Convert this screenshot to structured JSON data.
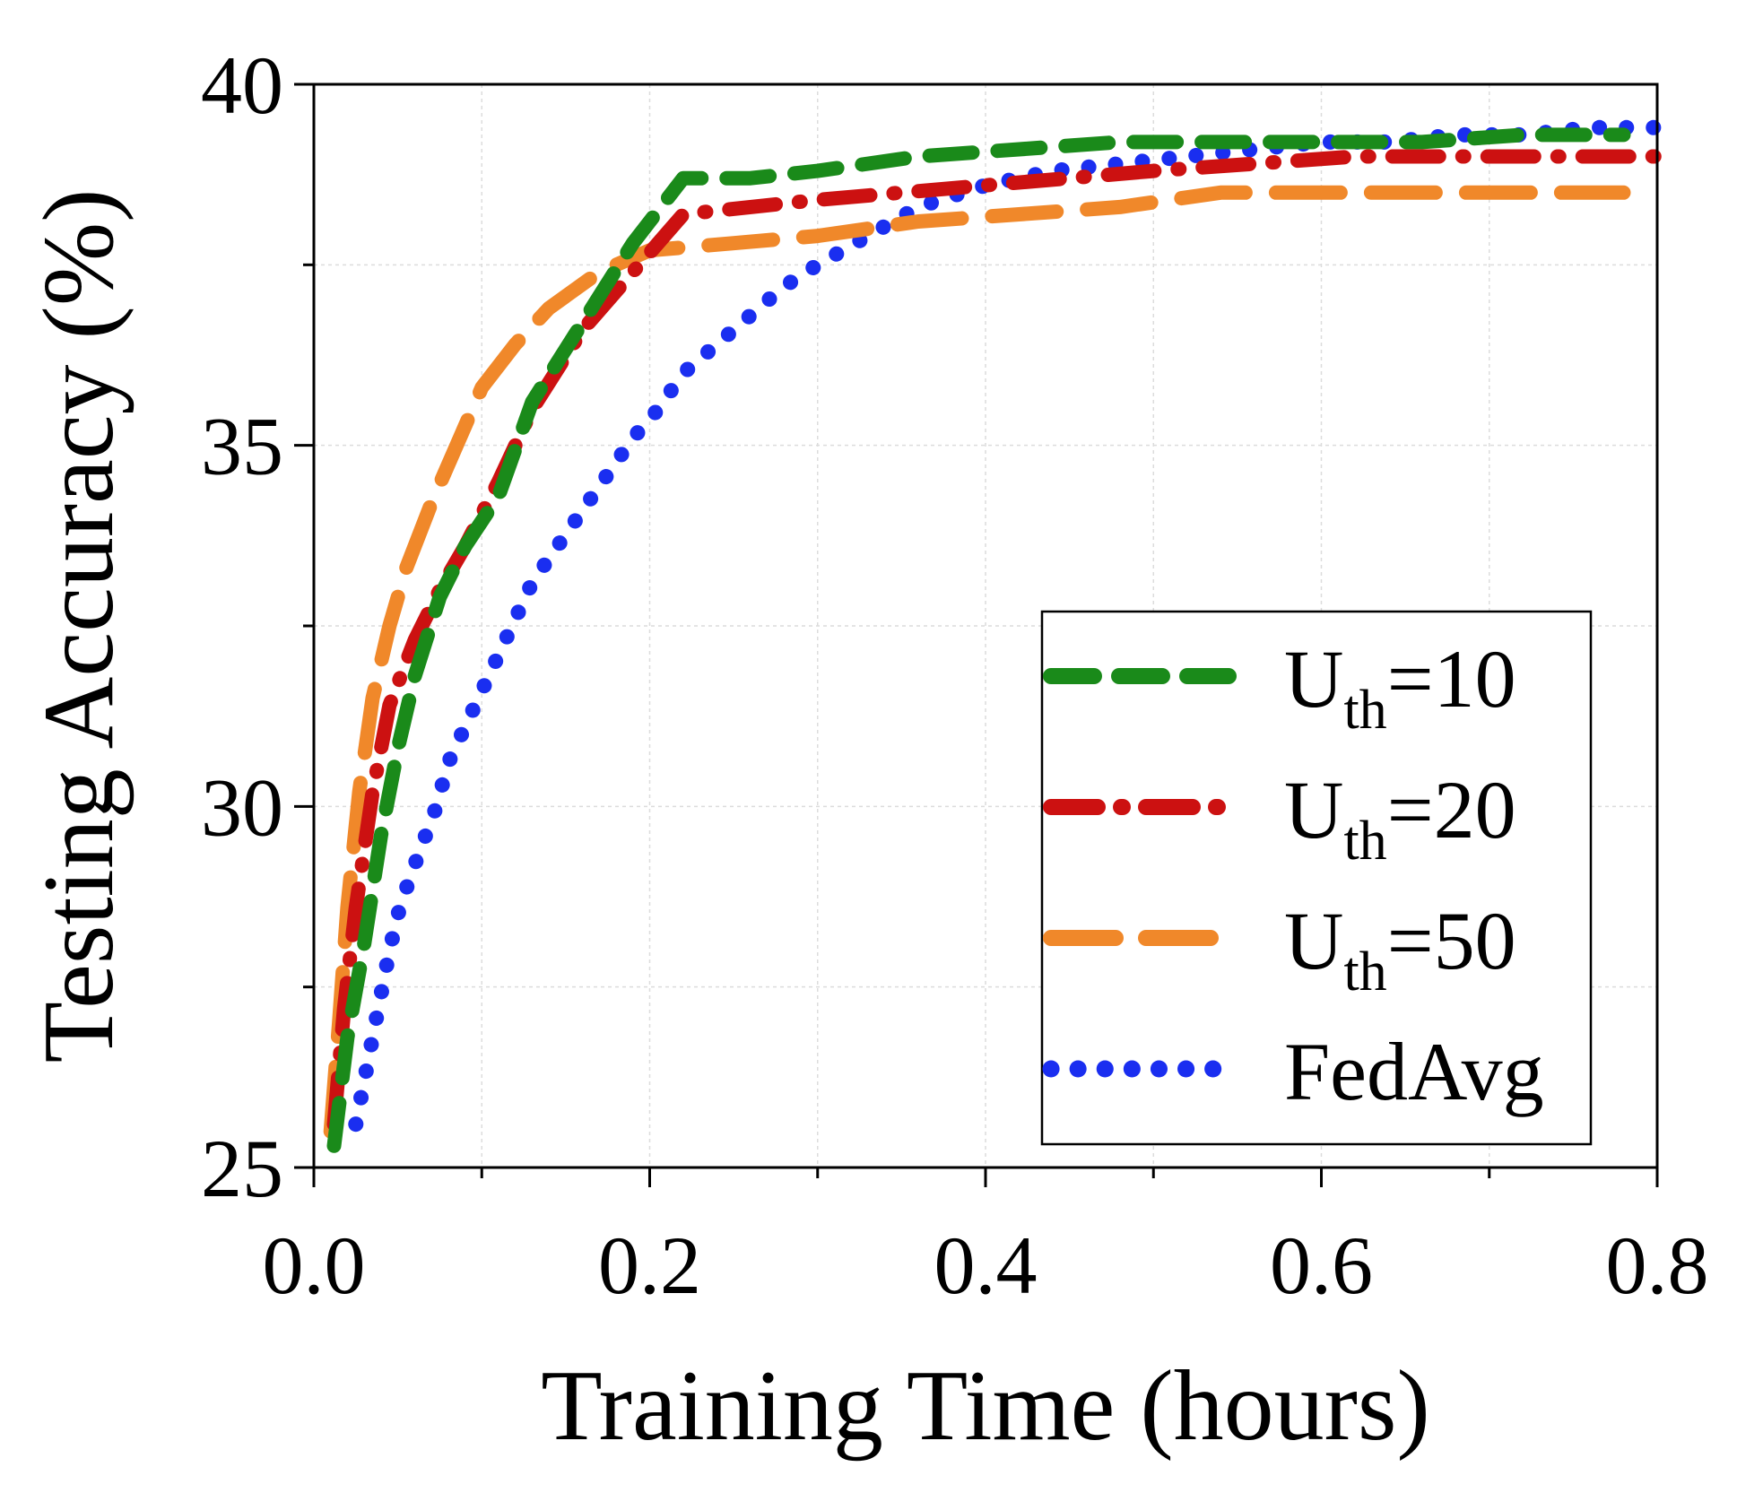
{
  "chart_data": {
    "type": "line",
    "title": "",
    "xlabel": "Training Time (hours)",
    "ylabel": "Testing Accuracy (%)",
    "xlim": [
      0.0,
      0.8
    ],
    "ylim": [
      25,
      40
    ],
    "xticks": [
      0.0,
      0.2,
      0.4,
      0.6,
      0.8
    ],
    "xtick_labels": [
      "0.0",
      "0.2",
      "0.4",
      "0.6",
      "0.8"
    ],
    "yticks": [
      25,
      30,
      35,
      40
    ],
    "ytick_labels": [
      "25",
      "30",
      "35",
      "40"
    ],
    "grid": true,
    "legend_position": "bottom-right",
    "series": [
      {
        "name": "Uth=10",
        "label_main": "U",
        "label_sub": "th",
        "label_tail": "=10",
        "color": "#1a8a1a",
        "dash": "dashed",
        "x": [
          0.012,
          0.02,
          0.03,
          0.04,
          0.05,
          0.06,
          0.075,
          0.09,
          0.11,
          0.13,
          0.16,
          0.19,
          0.22,
          0.26,
          0.3,
          0.36,
          0.42,
          0.48,
          0.54,
          0.6,
          0.66,
          0.72,
          0.78
        ],
        "y": [
          25.3,
          26.8,
          28.1,
          29.6,
          30.8,
          31.8,
          32.9,
          33.6,
          34.3,
          35.6,
          36.7,
          37.8,
          38.7,
          38.7,
          38.8,
          39.0,
          39.1,
          39.2,
          39.2,
          39.2,
          39.2,
          39.3,
          39.3
        ]
      },
      {
        "name": "Uth=20",
        "label_main": "U",
        "label_sub": "th",
        "label_tail": "=20",
        "color": "#cc1111",
        "dash": "dashdot",
        "x": [
          0.012,
          0.018,
          0.025,
          0.035,
          0.045,
          0.06,
          0.075,
          0.09,
          0.11,
          0.13,
          0.16,
          0.19,
          0.22,
          0.26,
          0.3,
          0.35,
          0.4,
          0.45,
          0.5,
          0.56,
          0.62,
          0.7,
          0.76,
          0.8
        ],
        "y": [
          25.6,
          27.2,
          28.6,
          30.2,
          31.4,
          32.3,
          33.0,
          33.6,
          34.5,
          35.5,
          36.6,
          37.4,
          38.2,
          38.3,
          38.4,
          38.5,
          38.6,
          38.7,
          38.8,
          38.9,
          39.0,
          39.0,
          39.0,
          39.0
        ]
      },
      {
        "name": "Uth=50",
        "label_main": "U",
        "label_sub": "th",
        "label_tail": "=50",
        "color": "#f0882a",
        "dash": "longdash",
        "x": [
          0.01,
          0.015,
          0.02,
          0.027,
          0.035,
          0.045,
          0.055,
          0.07,
          0.085,
          0.1,
          0.12,
          0.14,
          0.17,
          0.2,
          0.25,
          0.3,
          0.36,
          0.42,
          0.48,
          0.54,
          0.6,
          0.66,
          0.72,
          0.78
        ],
        "y": [
          25.5,
          27.0,
          28.6,
          30.2,
          31.5,
          32.5,
          33.3,
          34.2,
          35.0,
          35.8,
          36.4,
          36.9,
          37.4,
          37.7,
          37.8,
          37.9,
          38.1,
          38.2,
          38.3,
          38.5,
          38.5,
          38.5,
          38.5,
          38.5
        ]
      },
      {
        "name": "FedAvg",
        "label_main": "FedAvg",
        "label_sub": "",
        "label_tail": "",
        "color": "#1a2ef0",
        "dash": "dotted",
        "x": [
          0.025,
          0.03,
          0.035,
          0.04,
          0.045,
          0.05,
          0.057,
          0.065,
          0.073,
          0.08,
          0.09,
          0.1,
          0.11,
          0.12,
          0.13,
          0.145,
          0.16,
          0.175,
          0.19,
          0.205,
          0.22,
          0.24,
          0.26,
          0.28,
          0.3,
          0.33,
          0.36,
          0.4,
          0.44,
          0.48,
          0.52,
          0.56,
          0.6,
          0.64,
          0.68,
          0.72,
          0.76,
          0.8
        ],
        "y": [
          25.6,
          26.2,
          26.8,
          27.4,
          28.0,
          28.5,
          29.0,
          29.5,
          30.0,
          30.6,
          31.1,
          31.6,
          32.1,
          32.6,
          33.1,
          33.6,
          34.1,
          34.6,
          35.1,
          35.5,
          36.0,
          36.4,
          36.8,
          37.2,
          37.5,
          37.9,
          38.3,
          38.6,
          38.8,
          38.9,
          39.0,
          39.1,
          39.2,
          39.2,
          39.3,
          39.3,
          39.4,
          39.4
        ]
      }
    ]
  }
}
